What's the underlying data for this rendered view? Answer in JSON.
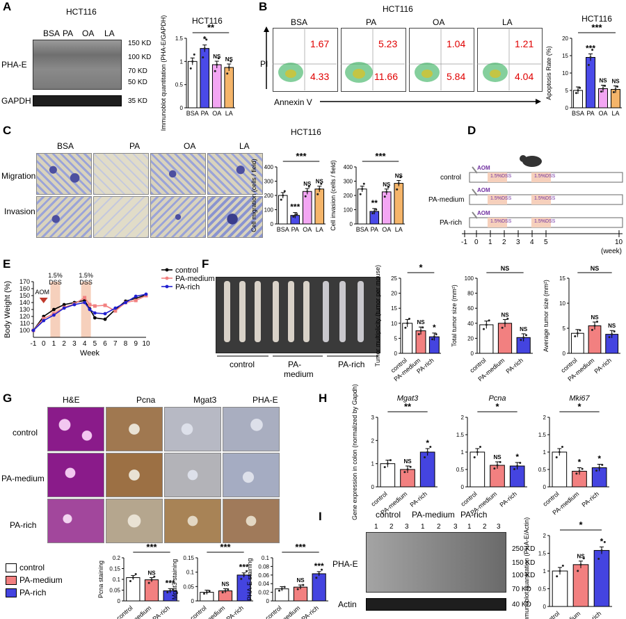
{
  "panels": {
    "A": "A",
    "B": "B",
    "C": "C",
    "D": "D",
    "E": "E",
    "F": "F",
    "G": "G",
    "H": "H",
    "I": "I"
  },
  "cell_line": "HCT116",
  "colors": {
    "bsa": "#ffffff",
    "pa": "#4a4ae8",
    "oa": "#f3a6f3",
    "la": "#f5b56a",
    "control": "#ffffff",
    "pa_medium": "#f28080",
    "pa_rich": "#4444e0",
    "red_text": "#e00000",
    "dss_shade": "#f6d0bc"
  },
  "panelA": {
    "lanes": [
      "BSA",
      "PA",
      "OA",
      "LA"
    ],
    "blot_label": "PHA-E",
    "loading_label": "GAPDH",
    "markers": [
      "150 KD",
      "100 KD",
      "70 KD",
      "50 KD",
      "35 KD"
    ]
  },
  "panelB": {
    "conditions": [
      "BSA",
      "PA",
      "OA",
      "LA"
    ],
    "upper_right": [
      "1.67",
      "5.23",
      "1.04",
      "1.21"
    ],
    "lower_right": [
      "4.33",
      "11.66",
      "5.84",
      "4.04"
    ],
    "x_axis": "Annexin V",
    "y_axis": "PI"
  },
  "panelC": {
    "conditions": [
      "BSA",
      "PA",
      "OA",
      "LA"
    ],
    "rows": [
      "Migration",
      "Invasion"
    ]
  },
  "panelD": {
    "groups": [
      "control",
      "PA-medium",
      "PA-rich"
    ],
    "aom": "AOM",
    "dss": "1.5%DSS",
    "weeks": [
      "-1",
      "0",
      "1",
      "2",
      "3",
      "4",
      "5",
      "10"
    ],
    "week_unit": "(week)"
  },
  "panelE": {
    "aom": "AOM",
    "dss": [
      "1.5%",
      "DSS"
    ]
  },
  "panelF": {
    "groups": [
      "control",
      "PA-",
      "PA-rich"
    ],
    "group_sub": "medium"
  },
  "panelG": {
    "stains": [
      "H&E",
      "Pcna",
      "Mgat3",
      "PHA-E"
    ],
    "rows": [
      "control",
      "PA-medium",
      "PA-rich"
    ],
    "legend": [
      "control",
      "PA-medium",
      "PA-rich"
    ]
  },
  "panelI": {
    "groups": [
      "control",
      "PA-medium",
      "PA-rich"
    ],
    "lane_numbers": [
      "1",
      "2",
      "3"
    ],
    "blot_label": "PHA-E",
    "loading_label": "Actin",
    "markers": [
      "250 KD",
      "150 KD",
      "100 KD",
      "70 KD",
      "40 KD"
    ]
  },
  "chart_data": [
    {
      "id": "A-quant",
      "type": "bar",
      "categories": [
        "BSA",
        "PA",
        "OA",
        "LA"
      ],
      "values": [
        1.0,
        1.28,
        0.93,
        0.87
      ],
      "ylabel": "Immunoblot quantitation (PHA-E/GAPDH)",
      "ylim": [
        0,
        1.5
      ],
      "yticks": [
        0,
        0.5,
        1.0,
        1.5
      ],
      "sig": [
        "",
        "*",
        "NS",
        "NS"
      ],
      "bracket": "**"
    },
    {
      "id": "B-apoptosis",
      "type": "bar",
      "categories": [
        "BSA",
        "PA",
        "OA",
        "LA"
      ],
      "values": [
        5,
        14.5,
        5.5,
        5.3
      ],
      "ylabel": "Apoptosis Rate (%)",
      "ylim": [
        0,
        20
      ],
      "yticks": [
        0,
        5,
        10,
        15,
        20
      ],
      "sig": [
        "",
        "***",
        "NS",
        "NS"
      ],
      "bracket": "***",
      "title": "HCT116"
    },
    {
      "id": "C-migration",
      "type": "bar",
      "categories": [
        "BSA",
        "PA",
        "OA",
        "LA"
      ],
      "values": [
        200,
        60,
        228,
        245
      ],
      "ylabel": "Cell migration (cells / field)",
      "ylim": [
        0,
        400
      ],
      "yticks": [
        0,
        100,
        200,
        300,
        400
      ],
      "sig": [
        "",
        "***",
        "NS",
        "NS"
      ],
      "bracket": "***"
    },
    {
      "id": "C-invasion",
      "type": "bar",
      "categories": [
        "BSA",
        "PA",
        "OA",
        "LA"
      ],
      "values": [
        245,
        88,
        225,
        285
      ],
      "ylabel": "Cell invasion (cells / field)",
      "ylim": [
        0,
        400
      ],
      "yticks": [
        0,
        100,
        200,
        300,
        400
      ],
      "sig": [
        "",
        "**",
        "NS",
        "NS"
      ],
      "bracket": "***"
    },
    {
      "id": "E-weight",
      "type": "line",
      "x": [
        -1,
        0,
        1,
        2,
        3,
        4,
        4.5,
        5,
        6,
        7,
        8,
        9,
        10
      ],
      "xticks": [
        "-1",
        "0",
        "1",
        "2",
        "3",
        "4",
        "5",
        "6",
        "7",
        "8",
        "9",
        "10"
      ],
      "xlabel": "Week",
      "ylabel": "Body Weight (%)",
      "ylim": [
        90,
        170
      ],
      "yticks": [
        100,
        110,
        120,
        130,
        140,
        150,
        160,
        170
      ],
      "series": [
        {
          "name": "control",
          "values": [
            100,
            120,
            130,
            137,
            140,
            143,
            131,
            118,
            116,
            130,
            142,
            146,
            151
          ]
        },
        {
          "name": "PA-medium",
          "values": [
            100,
            117,
            124,
            133,
            138,
            147,
            137,
            135,
            136,
            128,
            140,
            143,
            150
          ]
        },
        {
          "name": "PA-rich",
          "values": [
            100,
            114,
            122,
            132,
            137,
            140,
            130,
            125,
            124,
            132,
            140,
            149,
            152
          ]
        }
      ]
    },
    {
      "id": "F-multiplicity",
      "type": "bar",
      "categories": [
        "control",
        "PA-medium",
        "PA-rich"
      ],
      "values": [
        10,
        7.5,
        5.5
      ],
      "ylabel": "Tumor multiplicity (tumor per mouse)",
      "ylim": [
        0,
        25
      ],
      "yticks": [
        0,
        5,
        10,
        15,
        20,
        25
      ],
      "sig": [
        "",
        "NS",
        "*"
      ],
      "bracket": "*"
    },
    {
      "id": "F-total",
      "type": "bar",
      "categories": [
        "control",
        "PA-medium",
        "PA-rich"
      ],
      "values": [
        38,
        40,
        21
      ],
      "ylabel": "Total tumor size (mm²)",
      "ylim": [
        0,
        100
      ],
      "yticks": [
        0,
        20,
        40,
        60,
        80,
        100
      ],
      "sig": [
        "",
        "NS",
        "NS"
      ],
      "bracket": "NS"
    },
    {
      "id": "F-average",
      "type": "bar",
      "categories": [
        "control",
        "PA-medium",
        "PA-rich"
      ],
      "values": [
        4,
        5.5,
        3.8
      ],
      "ylabel": "Average tumor size (mm²)",
      "ylim": [
        0,
        15
      ],
      "yticks": [
        0,
        5,
        10,
        15
      ],
      "sig": [
        "",
        "NS",
        "NS"
      ],
      "bracket": "NS"
    },
    {
      "id": "G-pcna",
      "type": "bar",
      "categories": [
        "control",
        "PA-medium",
        "PA-rich"
      ],
      "values": [
        0.108,
        0.098,
        0.047
      ],
      "ylabel": "Pcna staining",
      "ylim": [
        0,
        0.2
      ],
      "yticks": [
        0,
        0.05,
        0.1,
        0.15,
        0.2
      ],
      "sig": [
        "",
        "NS",
        "***"
      ],
      "bracket": "***"
    },
    {
      "id": "G-mgat3",
      "type": "bar",
      "categories": [
        "control",
        "PA-medium",
        "PA-rich"
      ],
      "values": [
        0.03,
        0.035,
        0.09
      ],
      "ylabel": "Mgat3 staining",
      "ylim": [
        0,
        0.15
      ],
      "yticks": [
        0,
        0.05,
        0.1,
        0.15
      ],
      "sig": [
        "",
        "NS",
        "***"
      ],
      "bracket": "***"
    },
    {
      "id": "G-phae",
      "type": "bar",
      "categories": [
        "control",
        "PA-medium",
        "PA-rich"
      ],
      "values": [
        0.028,
        0.032,
        0.063
      ],
      "ylabel": "PHA-E staining",
      "ylim": [
        0,
        0.1
      ],
      "yticks": [
        0,
        0.02,
        0.04,
        0.06,
        0.08,
        0.1
      ],
      "sig": [
        "",
        "NS",
        "***"
      ],
      "bracket": "***"
    },
    {
      "id": "H-mgat3",
      "type": "bar",
      "title": "Mgat3",
      "categories": [
        "control",
        "PA-medium",
        "PA-rich"
      ],
      "values": [
        1.0,
        0.75,
        1.5
      ],
      "ylabel": "Gene expression in colon (normalized by Gapdh)",
      "ylim": [
        0,
        3
      ],
      "yticks": [
        0,
        1,
        2,
        3
      ],
      "sig": [
        "",
        "NS",
        "*"
      ],
      "bracket": "**"
    },
    {
      "id": "H-pcna",
      "type": "bar",
      "title": "Pcna",
      "categories": [
        "control",
        "PA-medium",
        "PA-rich"
      ],
      "values": [
        1.0,
        0.62,
        0.6
      ],
      "ylim": [
        0,
        2
      ],
      "yticks": [
        0,
        0.5,
        1,
        1.5,
        2
      ],
      "sig": [
        "",
        "NS",
        "*"
      ],
      "bracket": "*"
    },
    {
      "id": "H-mki67",
      "type": "bar",
      "title": "Mki67",
      "categories": [
        "control",
        "PA-medium",
        "PA-rich"
      ],
      "values": [
        1.0,
        0.45,
        0.55
      ],
      "ylim": [
        0,
        2
      ],
      "yticks": [
        0,
        0.5,
        1,
        1.5,
        2
      ],
      "sig": [
        "",
        "*",
        "*"
      ],
      "bracket": "*"
    },
    {
      "id": "I-quant",
      "type": "bar",
      "categories": [
        "control",
        "PA-medium",
        "PA-rich"
      ],
      "values": [
        1.0,
        1.18,
        1.58
      ],
      "ylabel": "Immunoblot quantitation (PHA-E/Actin)",
      "ylim": [
        0,
        2
      ],
      "yticks": [
        0,
        0.5,
        1,
        1.5,
        2
      ],
      "sig": [
        "",
        "NS",
        "*"
      ],
      "bracket": "*"
    }
  ]
}
